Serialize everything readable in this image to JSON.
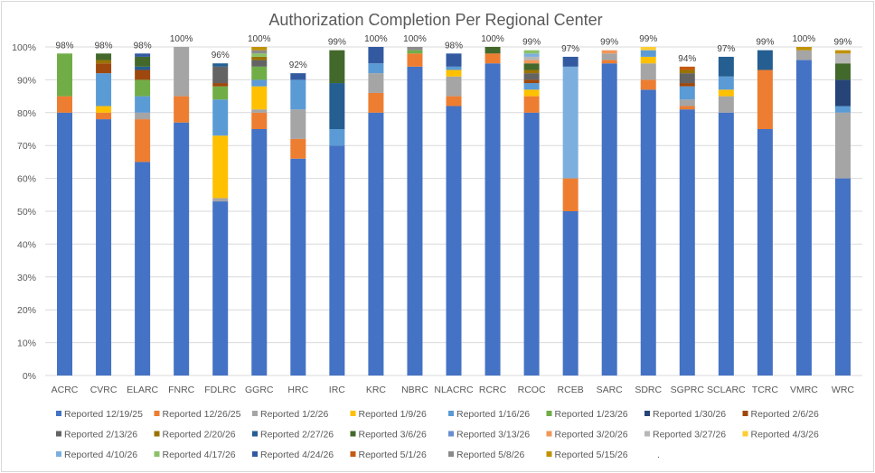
{
  "chart_data": {
    "type": "bar",
    "stacked": true,
    "title": "Authorization Completion Per Regional Center",
    "xlabel": "",
    "ylabel": "",
    "ylim": [
      0,
      100
    ],
    "yticks": [
      "0%",
      "10%",
      "20%",
      "30%",
      "40%",
      "50%",
      "60%",
      "70%",
      "80%",
      "90%",
      "100%"
    ],
    "grid": true,
    "legend_position": "bottom",
    "categories": [
      "ACRC",
      "CVRC",
      "ELARC",
      "FNRC",
      "FDLRC",
      "GGRC",
      "HRC",
      "IRC",
      "KRC",
      "NBRC",
      "NLACRC",
      "RCRC",
      "RCOC",
      "RCEB",
      "SARC",
      "SDRC",
      "SGPRC",
      "SCLARC",
      "TCRC",
      "VMRC",
      "WRC"
    ],
    "totals_labels": [
      "98%",
      "98%",
      "98%",
      "100%",
      "96%",
      "100%",
      "92%",
      "99%",
      "100%",
      "100%",
      "98%",
      "100%",
      "99%",
      "97%",
      "99%",
      "99%",
      "94%",
      "97%",
      "99%",
      "100%",
      "99%"
    ],
    "series": [
      {
        "name": "Reported 12/19/25",
        "color": "#4472c4",
        "values": [
          80,
          78,
          65,
          77,
          53,
          75,
          66,
          70,
          80,
          94,
          82,
          95,
          80,
          50,
          95,
          87,
          81,
          80,
          75,
          96,
          60
        ]
      },
      {
        "name": "Reported 12/26/25",
        "color": "#ed7d31",
        "values": [
          5,
          2,
          13,
          8,
          0,
          5,
          6,
          0,
          6,
          4,
          3,
          3,
          5,
          10,
          1,
          3,
          1,
          0,
          18,
          0,
          0
        ]
      },
      {
        "name": "Reported 1/2/26",
        "color": "#a5a5a5",
        "values": [
          0,
          0,
          2,
          15,
          1,
          1,
          9,
          0,
          6,
          0,
          6,
          0,
          0,
          0,
          2,
          5,
          2,
          5,
          0,
          3,
          20
        ]
      },
      {
        "name": "Reported 1/9/26",
        "color": "#ffc000",
        "values": [
          0,
          2,
          0,
          0,
          19,
          7,
          0,
          0,
          0,
          0,
          2,
          0,
          2,
          0,
          0,
          2,
          0,
          2,
          0,
          0,
          0
        ]
      },
      {
        "name": "Reported 1/16/26",
        "color": "#5b9bd5",
        "values": [
          0,
          10,
          5,
          0,
          11,
          2,
          9,
          5,
          3,
          0,
          1,
          0,
          2,
          0,
          0,
          2,
          4,
          4,
          0,
          0,
          2
        ]
      },
      {
        "name": "Reported 1/23/26",
        "color": "#70ad47",
        "values": [
          13,
          0,
          5,
          0,
          4,
          4,
          0,
          0,
          0,
          1,
          0,
          0,
          0,
          0,
          0,
          0,
          0,
          0,
          0,
          0,
          0
        ]
      },
      {
        "name": "Reported 1/30/26",
        "color": "#264478",
        "values": [
          0,
          0,
          0,
          0,
          0,
          0,
          0,
          0,
          0,
          0,
          0,
          0,
          0,
          0,
          0,
          0,
          0,
          0,
          0,
          0,
          8
        ]
      },
      {
        "name": "Reported 2/6/26",
        "color": "#9e480e",
        "values": [
          0,
          3,
          3,
          0,
          1,
          0,
          0,
          0,
          0,
          0,
          0,
          0,
          1,
          0,
          0,
          0,
          1,
          0,
          0,
          0,
          0
        ]
      },
      {
        "name": "Reported 2/13/26",
        "color": "#636363",
        "values": [
          0,
          0,
          0,
          0,
          5,
          2,
          0,
          0,
          0,
          0,
          0,
          0,
          2,
          0,
          0,
          0,
          3,
          0,
          0,
          0,
          0
        ]
      },
      {
        "name": "Reported 2/20/26",
        "color": "#997300",
        "values": [
          0,
          1,
          0,
          0,
          0,
          1,
          0,
          0,
          0,
          0,
          0,
          0,
          1,
          0,
          0,
          0,
          1,
          0,
          0,
          0,
          0
        ]
      },
      {
        "name": "Reported 2/27/26",
        "color": "#255e91",
        "values": [
          0,
          0,
          1,
          0,
          1,
          0,
          0,
          14,
          0,
          0,
          0,
          0,
          0,
          0,
          0,
          0,
          0,
          6,
          6,
          0,
          0
        ]
      },
      {
        "name": "Reported 3/6/26",
        "color": "#43682b",
        "values": [
          0,
          2,
          3,
          0,
          0,
          0,
          0,
          10,
          0,
          0,
          0,
          2,
          2,
          0,
          0,
          0,
          0,
          0,
          0,
          0,
          5
        ]
      },
      {
        "name": "Reported 3/13/26",
        "color": "#698ed0",
        "values": [
          0,
          0,
          0,
          0,
          0,
          0,
          0,
          0,
          0,
          0,
          0,
          0,
          0,
          0,
          0,
          0,
          0,
          0,
          0,
          0,
          0
        ]
      },
      {
        "name": "Reported 3/20/26",
        "color": "#f1975a",
        "values": [
          0,
          0,
          0,
          0,
          0,
          0,
          0,
          0,
          0,
          0,
          0,
          0,
          1,
          0,
          1,
          0,
          0,
          0,
          0,
          0,
          0
        ]
      },
      {
        "name": "Reported 3/27/26",
        "color": "#b7b7b7",
        "values": [
          0,
          0,
          0,
          0,
          0,
          0,
          0,
          0,
          0,
          0,
          0,
          0,
          1,
          0,
          0,
          0,
          0,
          0,
          0,
          0,
          3
        ]
      },
      {
        "name": "Reported 4/3/26",
        "color": "#ffcd33",
        "values": [
          0,
          0,
          0,
          0,
          0,
          0,
          0,
          0,
          0,
          0,
          0,
          0,
          0,
          0,
          0,
          1,
          0,
          0,
          0,
          0,
          0
        ]
      },
      {
        "name": "Reported 4/10/26",
        "color": "#7cafdd",
        "values": [
          0,
          0,
          0,
          0,
          0,
          0,
          0,
          0,
          0,
          0,
          0,
          0,
          1,
          34,
          0,
          0,
          0,
          0,
          0,
          0,
          0
        ]
      },
      {
        "name": "Reported 4/17/26",
        "color": "#8cc168",
        "values": [
          0,
          0,
          0,
          0,
          0,
          1,
          0,
          0,
          0,
          0,
          0,
          0,
          1,
          0,
          0,
          0,
          0,
          0,
          0,
          0,
          0
        ]
      },
      {
        "name": "Reported 4/24/26",
        "color": "#335aa1",
        "values": [
          0,
          0,
          1,
          0,
          0,
          0,
          2,
          0,
          5,
          0,
          4,
          0,
          0,
          3,
          0,
          0,
          0,
          0,
          0,
          0,
          0
        ]
      },
      {
        "name": "Reported 5/1/26",
        "color": "#c55a11",
        "values": [
          0,
          0,
          0,
          0,
          0,
          0,
          0,
          0,
          0,
          0,
          0,
          0,
          0,
          0,
          0,
          0,
          1,
          0,
          0,
          0,
          0
        ]
      },
      {
        "name": "Reported 5/8/26",
        "color": "#8b8b8b",
        "values": [
          0,
          0,
          0,
          0,
          0,
          1,
          0,
          0,
          0,
          1,
          0,
          0,
          0,
          0,
          0,
          0,
          0,
          0,
          0,
          0,
          0
        ]
      },
      {
        "name": "Reported 5/15/26",
        "color": "#c09100",
        "values": [
          0,
          0,
          0,
          0,
          0,
          1,
          0,
          0,
          0,
          0,
          0,
          0,
          0,
          0,
          0,
          0,
          0,
          0,
          0,
          1,
          1
        ]
      }
    ],
    "legend_extra": "."
  }
}
